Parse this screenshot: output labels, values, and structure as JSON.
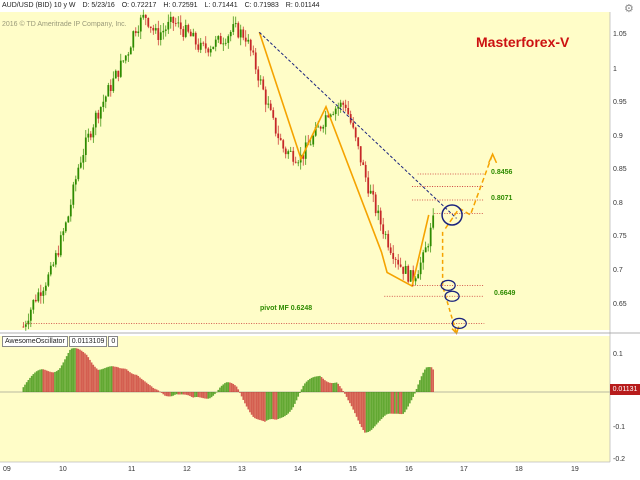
{
  "header": {
    "symbol": "AUD/USD (BID) 10 y W",
    "date": "D: 5/23/16",
    "open": "O: 0.72217",
    "high": "H: 0.72591",
    "low": "L: 0.71441",
    "close": "C: 0.71983",
    "range": "R: 0.01144"
  },
  "copyright": "2016 © TD Ameritrade IP Company, Inc.",
  "brand": "Masterforex-V",
  "price_axis": [
    "1.05",
    "1",
    "0.95",
    "0.9",
    "0.85",
    "0.8",
    "0.75",
    "0.7",
    "0.65"
  ],
  "osc_axis": [
    "0.1",
    "0",
    "-0.1",
    "-0.2"
  ],
  "time_axis": [
    "09",
    "10",
    "11",
    "12",
    "13",
    "14",
    "15",
    "16",
    "17",
    "18",
    "19"
  ],
  "levels": {
    "l1": "0.8456",
    "l2": "0.8071",
    "l3": "0.6649",
    "pivot": "pivot MF 0.6248"
  },
  "oscillator": {
    "name": "AwesomeOscillator",
    "value": "0.0113109",
    "param": "0",
    "current": "0.01131"
  },
  "colors": {
    "chart_bg": "#fffdc8",
    "bull": "#2e8b00",
    "bear": "#c62828",
    "trend": "#f5a300",
    "dashed": "#1a237e",
    "level": "#c62828",
    "circle": "#1a237e"
  },
  "chart_data": {
    "type": "line",
    "x": [
      9,
      9.2,
      9.5,
      9.8,
      10,
      10.3,
      10.6,
      10.9,
      11,
      11.2,
      11.4,
      11.7,
      12,
      12.2,
      12.5,
      12.8,
      13,
      13.2,
      13.5,
      13.7,
      14,
      14.3,
      14.5,
      14.8,
      15,
      15.2,
      15.4,
      15.6,
      15.8,
      16,
      16.2,
      16.4
    ],
    "series": [
      {
        "values": [
          0.62,
          0.66,
          0.7,
          0.78,
          0.86,
          0.93,
          0.98,
          1.03,
          1.06,
          1.08,
          1.05,
          1.07,
          1.05,
          1.03,
          1.04,
          1.06,
          1.05,
          1.0,
          0.92,
          0.88,
          0.87,
          0.91,
          0.94,
          0.95,
          0.89,
          0.83,
          0.78,
          0.74,
          0.71,
          0.69,
          0.72,
          0.78
        ]
      }
    ],
    "ylim": [
      0.62,
      1.07
    ],
    "xlim": [
      9,
      19.6
    ]
  }
}
